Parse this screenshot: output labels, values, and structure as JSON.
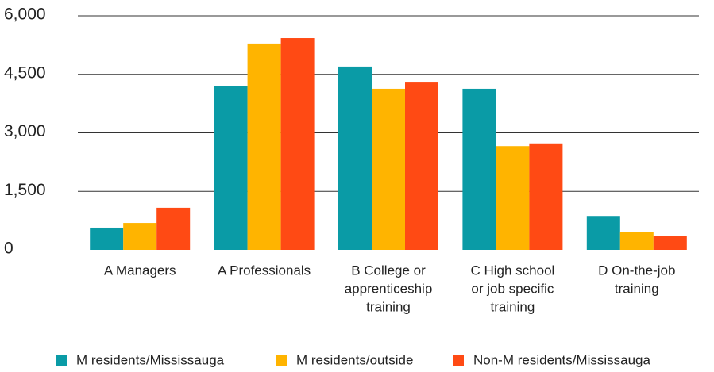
{
  "chart_data": {
    "type": "bar",
    "categories": [
      [
        "A Managers"
      ],
      [
        "A Professionals"
      ],
      [
        "B College or",
        "apprenticeship",
        "training"
      ],
      [
        "C High school",
        "or job specific",
        "training"
      ],
      [
        "D On-the-job",
        "training"
      ]
    ],
    "series": [
      {
        "name": "M residents/Mississauga",
        "color": "#0a9ba6",
        "values": [
          570,
          4210,
          4700,
          4130,
          870
        ]
      },
      {
        "name": "M residents/outside",
        "color": "#ffb400",
        "values": [
          690,
          5290,
          4130,
          2660,
          450
        ]
      },
      {
        "name": "Non-M residents/Mississauga",
        "color": "#ff4a14",
        "values": [
          1080,
          5430,
          4290,
          2730,
          350
        ]
      }
    ],
    "ylim": [
      0,
      6000
    ],
    "yticks": [
      0,
      {
        "value": 1500,
        "label": "1,500"
      },
      {
        "value": 3000,
        "label": "3,000"
      },
      {
        "value": 4500,
        "label": "4,500"
      },
      {
        "value": 6000,
        "label": "6,000"
      }
    ],
    "grid": true,
    "legend": "bottom"
  }
}
